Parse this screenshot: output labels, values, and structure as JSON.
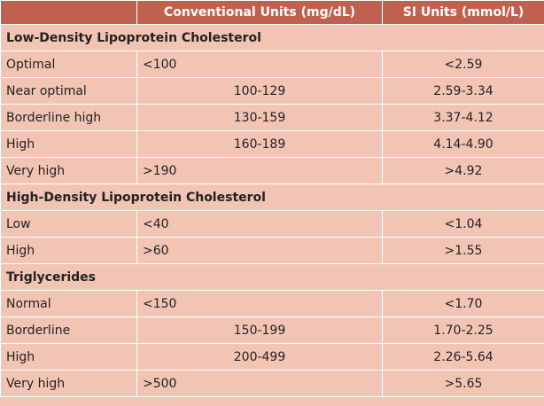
{
  "header": {
    "col1": "",
    "col2": "Conventional Units (mg/dL)",
    "col3": "SI Units (mmol/L)"
  },
  "sections": [
    {
      "title": "Low-Density Lipoprotein Cholesterol",
      "rows": [
        {
          "label": "Optimal",
          "conv": "<100",
          "conv_align": "left",
          "si": "<2.59"
        },
        {
          "label": "Near optimal",
          "conv": "100-129",
          "conv_align": "center",
          "si": "2.59-3.34"
        },
        {
          "label": "Borderline high",
          "conv": "130-159",
          "conv_align": "center",
          "si": "3.37-4.12"
        },
        {
          "label": "High",
          "conv": "160-189",
          "conv_align": "center",
          "si": "4.14-4.90"
        },
        {
          "label": "Very high",
          "conv": ">190",
          "conv_align": "left",
          "si": ">4.92"
        }
      ]
    },
    {
      "title": "High-Density Lipoprotein Cholesterol",
      "rows": [
        {
          "label": "Low",
          "conv": "<40",
          "conv_align": "left",
          "si": "<1.04"
        },
        {
          "label": "High",
          "conv": ">60",
          "conv_align": "left",
          "si": ">1.55"
        }
      ]
    },
    {
      "title": "Triglycerides",
      "rows": [
        {
          "label": "Normal",
          "conv": "<150",
          "conv_align": "left",
          "si": "<1.70"
        },
        {
          "label": "Borderline",
          "conv": "150-199",
          "conv_align": "center",
          "si": "1.70-2.25"
        },
        {
          "label": "High",
          "conv": "200-499",
          "conv_align": "center",
          "si": "2.26-5.64"
        },
        {
          "label": "Very high",
          "conv": ">500",
          "conv_align": "left",
          "si": ">5.65"
        }
      ]
    }
  ]
}
